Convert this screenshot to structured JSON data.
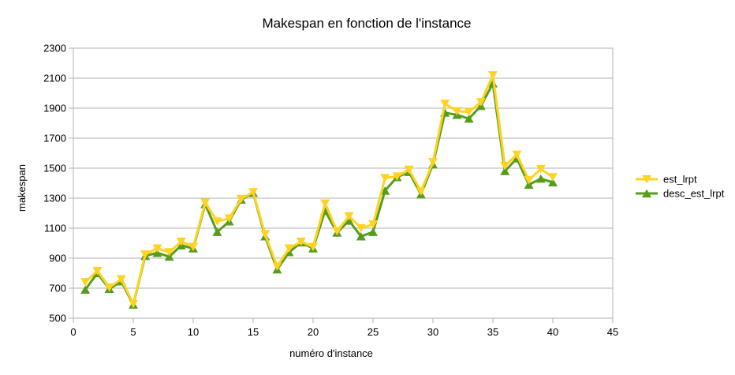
{
  "chart_data": {
    "type": "line",
    "title": "Makespan en fonction de l'instance",
    "xlabel": "numéro d'instance",
    "ylabel": "makespan",
    "xlim": [
      0,
      45
    ],
    "ylim": [
      500,
      2300
    ],
    "xticks": [
      0,
      5,
      10,
      15,
      20,
      25,
      30,
      35,
      40,
      45
    ],
    "yticks": [
      500,
      700,
      900,
      1100,
      1300,
      1500,
      1700,
      1900,
      2100,
      2300
    ],
    "grid": "horizontal",
    "legend_position": "right",
    "x": [
      1,
      2,
      3,
      4,
      5,
      6,
      7,
      8,
      9,
      10,
      11,
      12,
      13,
      14,
      15,
      16,
      17,
      18,
      19,
      20,
      21,
      22,
      23,
      24,
      25,
      26,
      27,
      28,
      29,
      30,
      31,
      32,
      33,
      34,
      35,
      36,
      37,
      38,
      39,
      40
    ],
    "series": [
      {
        "name": "est_lrpt",
        "color": "#ffd320",
        "marker": "triangle-down",
        "values": [
          740,
          815,
          705,
          760,
          595,
          925,
          965,
          940,
          1010,
          975,
          1270,
          1145,
          1165,
          1295,
          1340,
          1060,
          845,
          965,
          1010,
          975,
          1265,
          1080,
          1180,
          1100,
          1125,
          1435,
          1445,
          1490,
          1345,
          1540,
          1930,
          1880,
          1875,
          1940,
          2120,
          1515,
          1590,
          1420,
          1495,
          1440
        ]
      },
      {
        "name": "desc_est_lrpt",
        "color": "#579d1c",
        "marker": "triangle-up",
        "values": [
          690,
          800,
          695,
          745,
          590,
          915,
          935,
          910,
          985,
          965,
          1260,
          1075,
          1145,
          1290,
          1335,
          1045,
          825,
          940,
          1005,
          965,
          1215,
          1070,
          1150,
          1045,
          1075,
          1350,
          1440,
          1475,
          1325,
          1525,
          1870,
          1855,
          1830,
          1915,
          2065,
          1480,
          1565,
          1390,
          1430,
          1405
        ]
      }
    ]
  }
}
